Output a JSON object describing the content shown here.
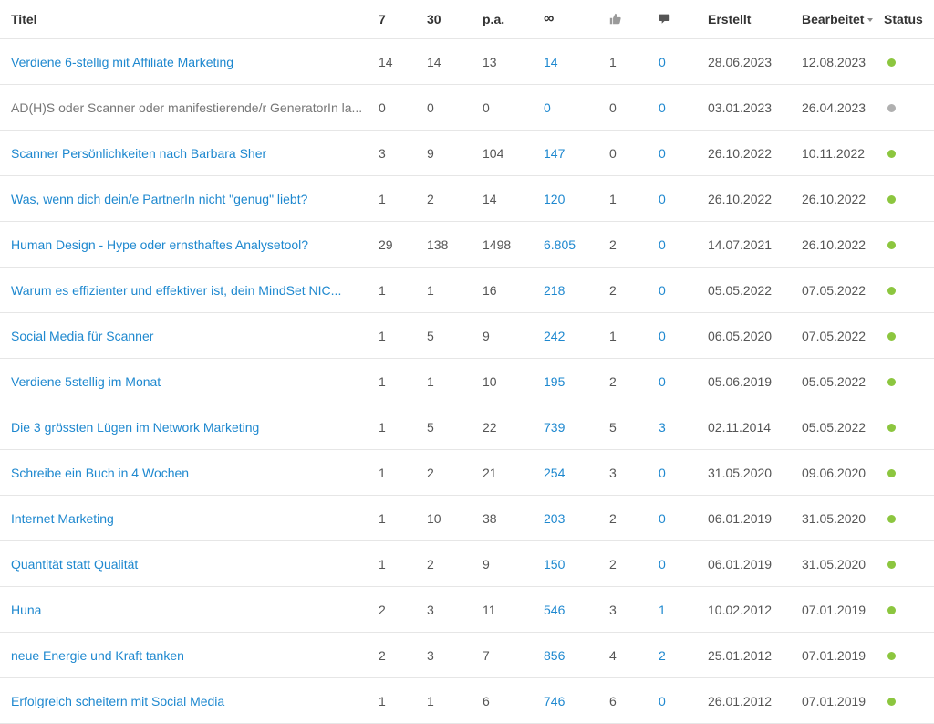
{
  "columns": {
    "title": "Titel",
    "views_7": "7",
    "views_30": "30",
    "views_pa": "p.a.",
    "views_total": "∞",
    "likes_icon": "thumbs-up-icon",
    "comments_icon": "comment-icon",
    "created": "Erstellt",
    "edited": "Bearbeitet",
    "status": "Status"
  },
  "colors": {
    "link": "#1e88cf",
    "status_active": "#8cc63f",
    "status_inactive": "#b0b0b0"
  },
  "rows": [
    {
      "title": "Verdiene 6-stellig mit Affiliate Marketing",
      "d7": "14",
      "d30": "14",
      "pa": "13",
      "total": "14",
      "likes": "1",
      "comments": "0",
      "created": "28.06.2023",
      "edited": "12.08.2023",
      "status": "active"
    },
    {
      "title": "AD(H)S oder Scanner oder manifestierende/r GeneratorIn la...",
      "d7": "0",
      "d30": "0",
      "pa": "0",
      "total": "0",
      "likes": "0",
      "comments": "0",
      "created": "03.01.2023",
      "edited": "26.04.2023",
      "status": "inactive"
    },
    {
      "title": "Scanner Persönlichkeiten nach Barbara Sher",
      "d7": "3",
      "d30": "9",
      "pa": "104",
      "total": "147",
      "likes": "0",
      "comments": "0",
      "created": "26.10.2022",
      "edited": "10.11.2022",
      "status": "active"
    },
    {
      "title": "Was, wenn dich dein/e PartnerIn nicht \"genug\" liebt?",
      "d7": "1",
      "d30": "2",
      "pa": "14",
      "total": "120",
      "likes": "1",
      "comments": "0",
      "created": "26.10.2022",
      "edited": "26.10.2022",
      "status": "active"
    },
    {
      "title": "Human Design - Hype oder ernsthaftes Analysetool?",
      "d7": "29",
      "d30": "138",
      "pa": "1498",
      "total": "6.805",
      "likes": "2",
      "comments": "0",
      "created": "14.07.2021",
      "edited": "26.10.2022",
      "status": "active"
    },
    {
      "title": "Warum es effizienter und effektiver ist, dein MindSet NIC...",
      "d7": "1",
      "d30": "1",
      "pa": "16",
      "total": "218",
      "likes": "2",
      "comments": "0",
      "created": "05.05.2022",
      "edited": "07.05.2022",
      "status": "active"
    },
    {
      "title": "Social Media für Scanner",
      "d7": "1",
      "d30": "5",
      "pa": "9",
      "total": "242",
      "likes": "1",
      "comments": "0",
      "created": "06.05.2020",
      "edited": "07.05.2022",
      "status": "active"
    },
    {
      "title": "Verdiene 5stellig im Monat",
      "d7": "1",
      "d30": "1",
      "pa": "10",
      "total": "195",
      "likes": "2",
      "comments": "0",
      "created": "05.06.2019",
      "edited": "05.05.2022",
      "status": "active"
    },
    {
      "title": "Die 3 grössten Lügen im Network Marketing",
      "d7": "1",
      "d30": "5",
      "pa": "22",
      "total": "739",
      "likes": "5",
      "comments": "3",
      "created": "02.11.2014",
      "edited": "05.05.2022",
      "status": "active"
    },
    {
      "title": "Schreibe ein Buch in 4 Wochen",
      "d7": "1",
      "d30": "2",
      "pa": "21",
      "total": "254",
      "likes": "3",
      "comments": "0",
      "created": "31.05.2020",
      "edited": "09.06.2020",
      "status": "active"
    },
    {
      "title": "Internet Marketing",
      "d7": "1",
      "d30": "10",
      "pa": "38",
      "total": "203",
      "likes": "2",
      "comments": "0",
      "created": "06.01.2019",
      "edited": "31.05.2020",
      "status": "active"
    },
    {
      "title": "Quantität statt Qualität",
      "d7": "1",
      "d30": "2",
      "pa": "9",
      "total": "150",
      "likes": "2",
      "comments": "0",
      "created": "06.01.2019",
      "edited": "31.05.2020",
      "status": "active"
    },
    {
      "title": "Huna",
      "d7": "2",
      "d30": "3",
      "pa": "11",
      "total": "546",
      "likes": "3",
      "comments": "1",
      "created": "10.02.2012",
      "edited": "07.01.2019",
      "status": "active"
    },
    {
      "title": "neue Energie und Kraft tanken",
      "d7": "2",
      "d30": "3",
      "pa": "7",
      "total": "856",
      "likes": "4",
      "comments": "2",
      "created": "25.01.2012",
      "edited": "07.01.2019",
      "status": "active"
    },
    {
      "title": "Erfolgreich scheitern mit Social Media",
      "d7": "1",
      "d30": "1",
      "pa": "6",
      "total": "746",
      "likes": "6",
      "comments": "0",
      "created": "26.01.2012",
      "edited": "07.01.2019",
      "status": "active"
    }
  ]
}
